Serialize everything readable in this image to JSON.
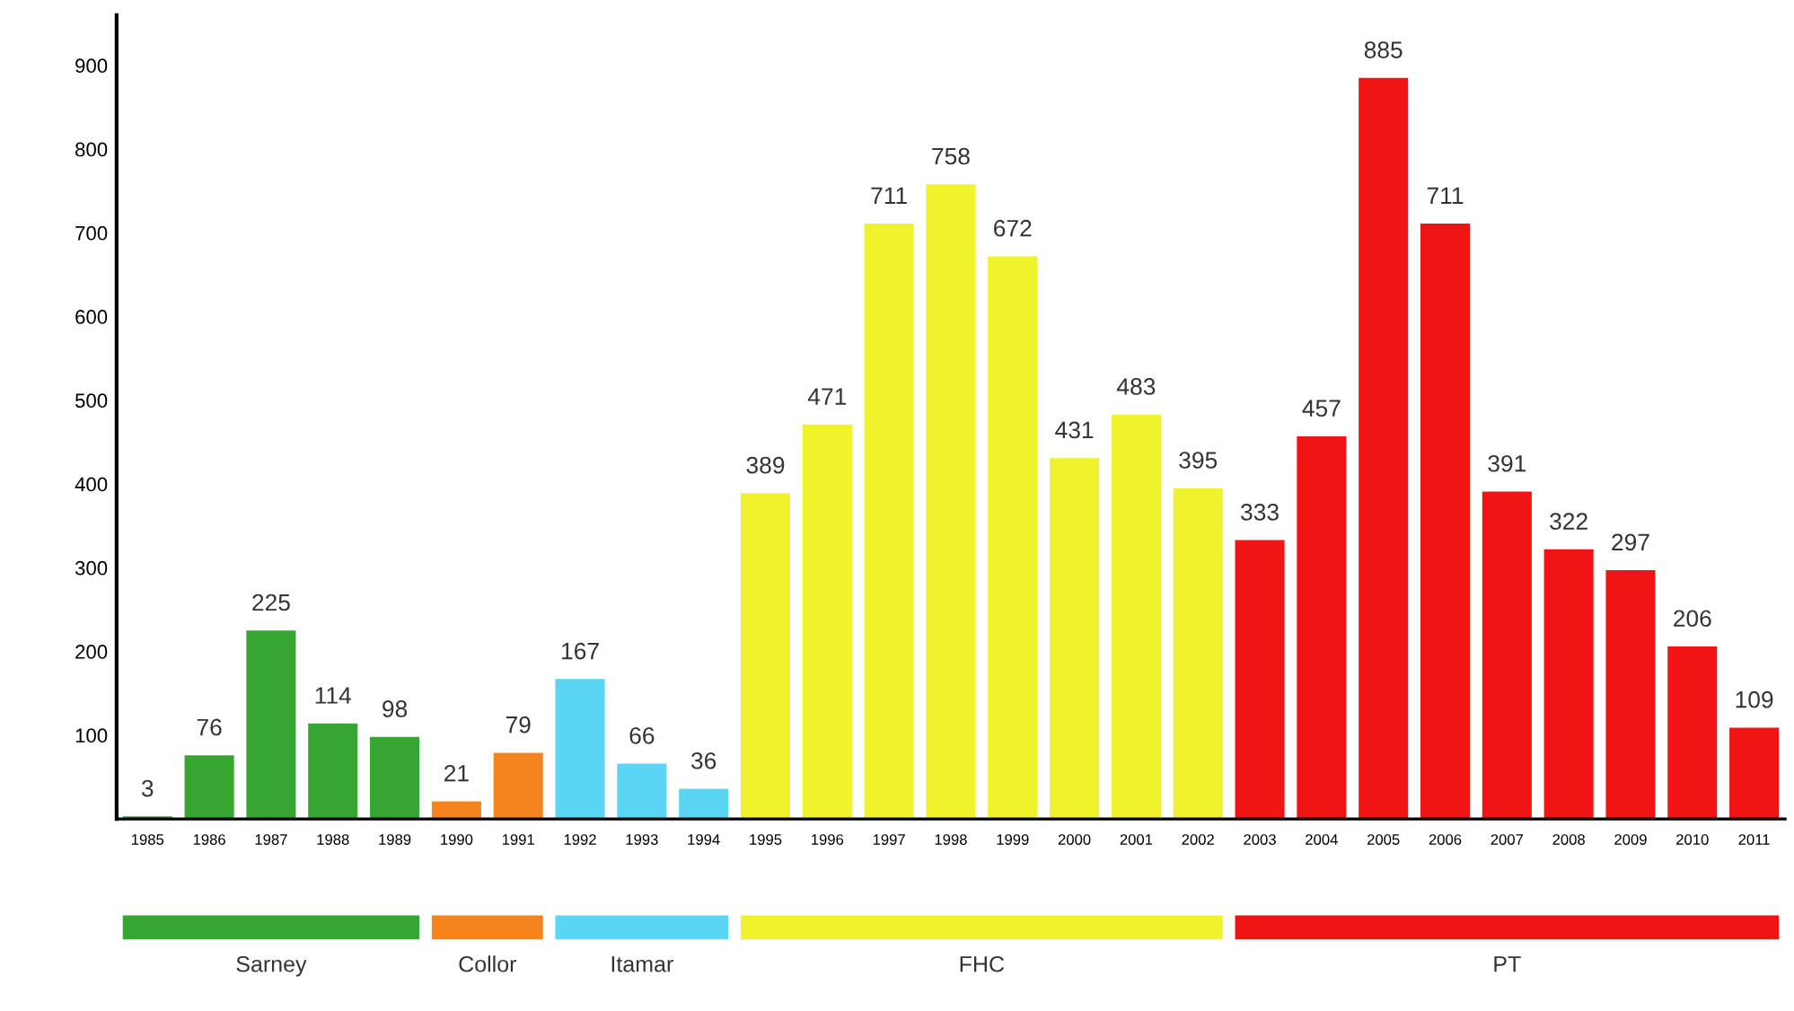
{
  "chart_data": {
    "type": "bar",
    "categories": [
      "1985",
      "1986",
      "1987",
      "1988",
      "1989",
      "1990",
      "1991",
      "1992",
      "1993",
      "1994",
      "1995",
      "1996",
      "1997",
      "1998",
      "1999",
      "2000",
      "2001",
      "2002",
      "2003",
      "2004",
      "2005",
      "2006",
      "2007",
      "2008",
      "2009",
      "2010",
      "2011"
    ],
    "values": [
      3,
      76,
      225,
      114,
      98,
      21,
      79,
      167,
      66,
      36,
      389,
      471,
      711,
      758,
      672,
      431,
      483,
      395,
      333,
      457,
      885,
      711,
      391,
      322,
      297,
      206,
      109
    ],
    "colors": [
      "#36a532",
      "#36a532",
      "#36a532",
      "#36a532",
      "#36a532",
      "#f5841f",
      "#f5841f",
      "#5ad5f3",
      "#5ad5f3",
      "#5ad5f3",
      "#f0f22c",
      "#f0f22c",
      "#f0f22c",
      "#f0f22c",
      "#f0f22c",
      "#f0f22c",
      "#f0f22c",
      "#f0f22c",
      "#f01414",
      "#f01414",
      "#f01414",
      "#f01414",
      "#f01414",
      "#f01414",
      "#f01414",
      "#f01414",
      "#f01414"
    ],
    "data_labels": true,
    "ylim": [
      0,
      960
    ],
    "yticks": [
      100,
      200,
      300,
      400,
      500,
      600,
      700,
      800,
      900
    ],
    "grid": false,
    "annotations": [
      "Sarney",
      "Collor",
      "Itamar",
      "FHC",
      "PT"
    ]
  }
}
